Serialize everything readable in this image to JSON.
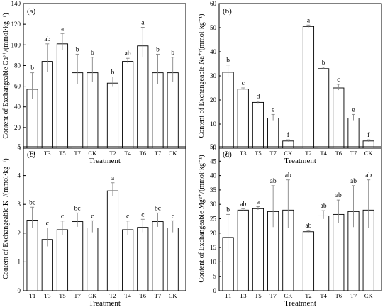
{
  "chart_data": [
    {
      "type": "bar",
      "panel_label": "(a)",
      "ylabel": "Content of Exchangeable Ca²⁺/(mmol·kg⁻¹)",
      "xlabel": "Treatment",
      "ylim": [
        0,
        140
      ],
      "yticks": [
        0,
        20,
        40,
        60,
        80,
        100,
        120,
        140
      ],
      "groups": [
        {
          "categories": [
            "T1",
            "T3",
            "T5",
            "T7",
            "CK"
          ],
          "values": [
            57,
            84,
            101,
            73,
            73
          ],
          "errors": [
            16,
            17,
            10,
            18,
            15
          ],
          "letters": [
            "b",
            "ab",
            "a",
            "b",
            "b"
          ]
        },
        {
          "categories": [
            "T2",
            "T4",
            "T6",
            "T7",
            "CK"
          ],
          "values": [
            63,
            84,
            99,
            73,
            73
          ],
          "errors": [
            6,
            3,
            18,
            18,
            15
          ],
          "letters": [
            "b",
            "ab",
            "a",
            "b",
            "b"
          ]
        }
      ]
    },
    {
      "type": "bar",
      "panel_label": "(b)",
      "ylabel": "Content of Exchangeable Na⁺/(mmol·kg⁻¹)",
      "xlabel": "Treatment",
      "ylim": [
        0,
        60
      ],
      "yticks": [
        0,
        10,
        20,
        30,
        40,
        50,
        60
      ],
      "groups": [
        {
          "categories": [
            "T1",
            "T3",
            "T5",
            "T7",
            "CK"
          ],
          "values": [
            31.5,
            24.5,
            19,
            12.5,
            3
          ],
          "errors": [
            3,
            0.5,
            0.5,
            1.5,
            0.5
          ],
          "letters": [
            "b",
            "c",
            "d",
            "e",
            "f"
          ]
        },
        {
          "categories": [
            "T2",
            "T4",
            "T6",
            "T7",
            "CK"
          ],
          "values": [
            50.5,
            33,
            25,
            12.5,
            3
          ],
          "errors": [
            0.6,
            0.6,
            1.5,
            1.5,
            0.5
          ],
          "letters": [
            "a",
            "b",
            "c",
            "e",
            "f"
          ]
        }
      ]
    },
    {
      "type": "bar",
      "panel_label": "(c)",
      "ylabel": "Content of Exchangeable K⁺/(mmol·kg⁻¹)",
      "xlabel": "Treatment",
      "ylim": [
        0,
        5
      ],
      "yticks": [
        0,
        1,
        2,
        3,
        4,
        5
      ],
      "groups": [
        {
          "categories": [
            "T1",
            "T3",
            "T5",
            "T7",
            "CK"
          ],
          "values": [
            2.45,
            1.78,
            2.12,
            2.4,
            2.18
          ],
          "errors": [
            0.45,
            0.4,
            0.3,
            0.3,
            0.25
          ],
          "letters": [
            "bc",
            "c",
            "c",
            "bc",
            "c"
          ]
        },
        {
          "categories": [
            "T2",
            "T4",
            "T6",
            "T7",
            "CK"
          ],
          "values": [
            3.47,
            2.12,
            2.2,
            2.4,
            2.18
          ],
          "errors": [
            0.28,
            0.3,
            0.28,
            0.3,
            0.25
          ],
          "letters": [
            "a",
            "c",
            "c",
            "bc",
            "c"
          ]
        }
      ]
    },
    {
      "type": "bar",
      "panel_label": "(d)",
      "ylabel": "Content of Exchangeable Mg²⁺/(mmol·kg⁻¹)",
      "xlabel": "Treatment",
      "ylim": [
        0,
        50
      ],
      "yticks": [
        0,
        5,
        10,
        15,
        20,
        25,
        30,
        35,
        40,
        45,
        50
      ],
      "groups": [
        {
          "categories": [
            "T1",
            "T3",
            "T5",
            "T7",
            "CK"
          ],
          "values": [
            18.5,
            28,
            28.5,
            27.5,
            28
          ],
          "errors": [
            8,
            0.5,
            0.7,
            9,
            10.5
          ],
          "letters": [
            "b",
            "ab",
            "a",
            "ab",
            "ab"
          ]
        },
        {
          "categories": [
            "T2",
            "T4",
            "T6",
            "T7",
            "CK"
          ],
          "values": [
            20.5,
            26,
            26.5,
            27.5,
            28
          ],
          "errors": [
            0.4,
            1.8,
            5,
            9,
            10.5
          ],
          "letters": [
            "ab",
            "ab",
            "ab",
            "ab",
            "ab"
          ]
        }
      ]
    }
  ]
}
